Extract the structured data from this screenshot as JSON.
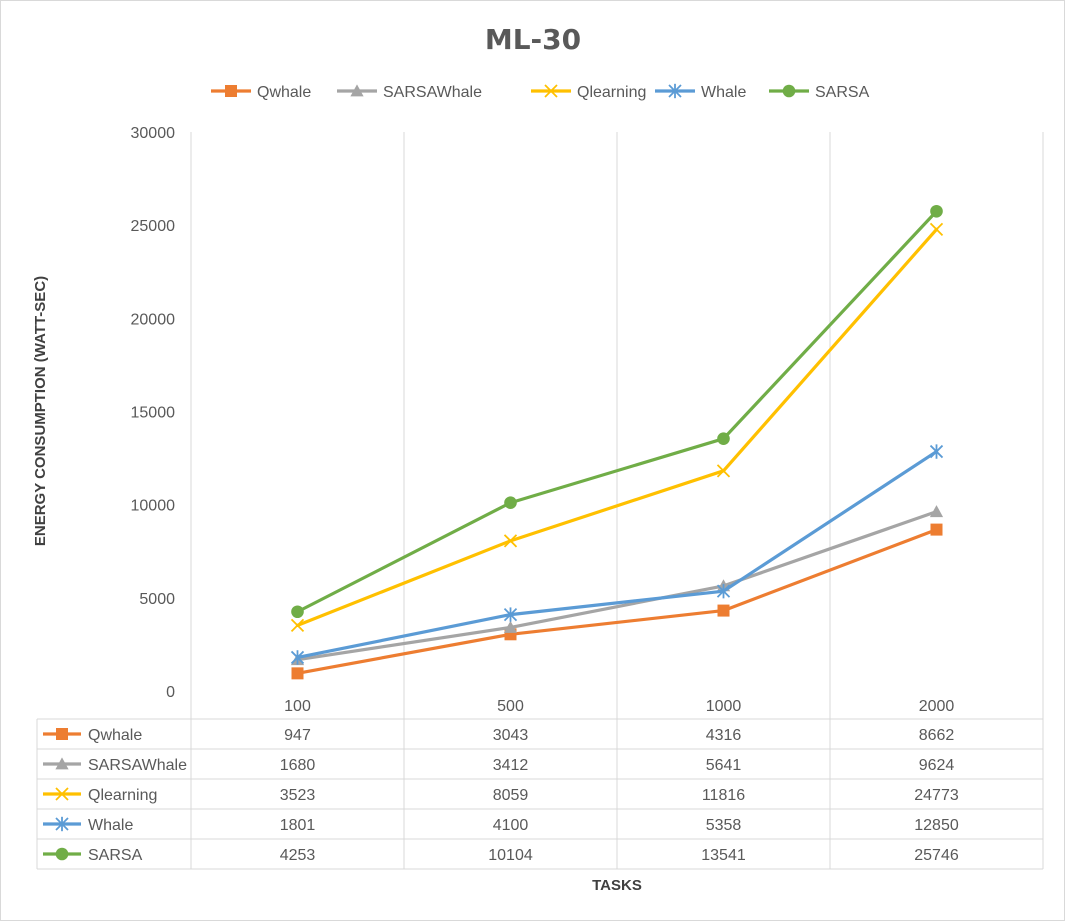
{
  "chart_data": {
    "type": "line",
    "title": "ML-30",
    "xlabel": "TASKS",
    "ylabel": "ENERGY CONSUMPTION (WATT-SEC)",
    "categories": [
      "100",
      "500",
      "1000",
      "2000"
    ],
    "ylim": [
      0,
      30000
    ],
    "yticks": [
      0,
      5000,
      10000,
      15000,
      20000,
      25000,
      30000
    ],
    "grid": "vertical",
    "legend_position": "top",
    "data_table": true,
    "series": [
      {
        "name": "Qwhale",
        "values": [
          947,
          3043,
          4316,
          8662
        ],
        "color": "#ed7d31",
        "marker": "square"
      },
      {
        "name": "SARSAWhale",
        "values": [
          1680,
          3412,
          5641,
          9624
        ],
        "color": "#a5a5a5",
        "marker": "triangle"
      },
      {
        "name": "Qlearning",
        "values": [
          3523,
          8059,
          11816,
          24773
        ],
        "color": "#ffc000",
        "marker": "x"
      },
      {
        "name": "Whale",
        "values": [
          1801,
          4100,
          5358,
          12850
        ],
        "color": "#5b9bd5",
        "marker": "star"
      },
      {
        "name": "SARSA",
        "values": [
          4253,
          10104,
          13541,
          25746
        ],
        "color": "#70ad47",
        "marker": "circle"
      }
    ]
  }
}
